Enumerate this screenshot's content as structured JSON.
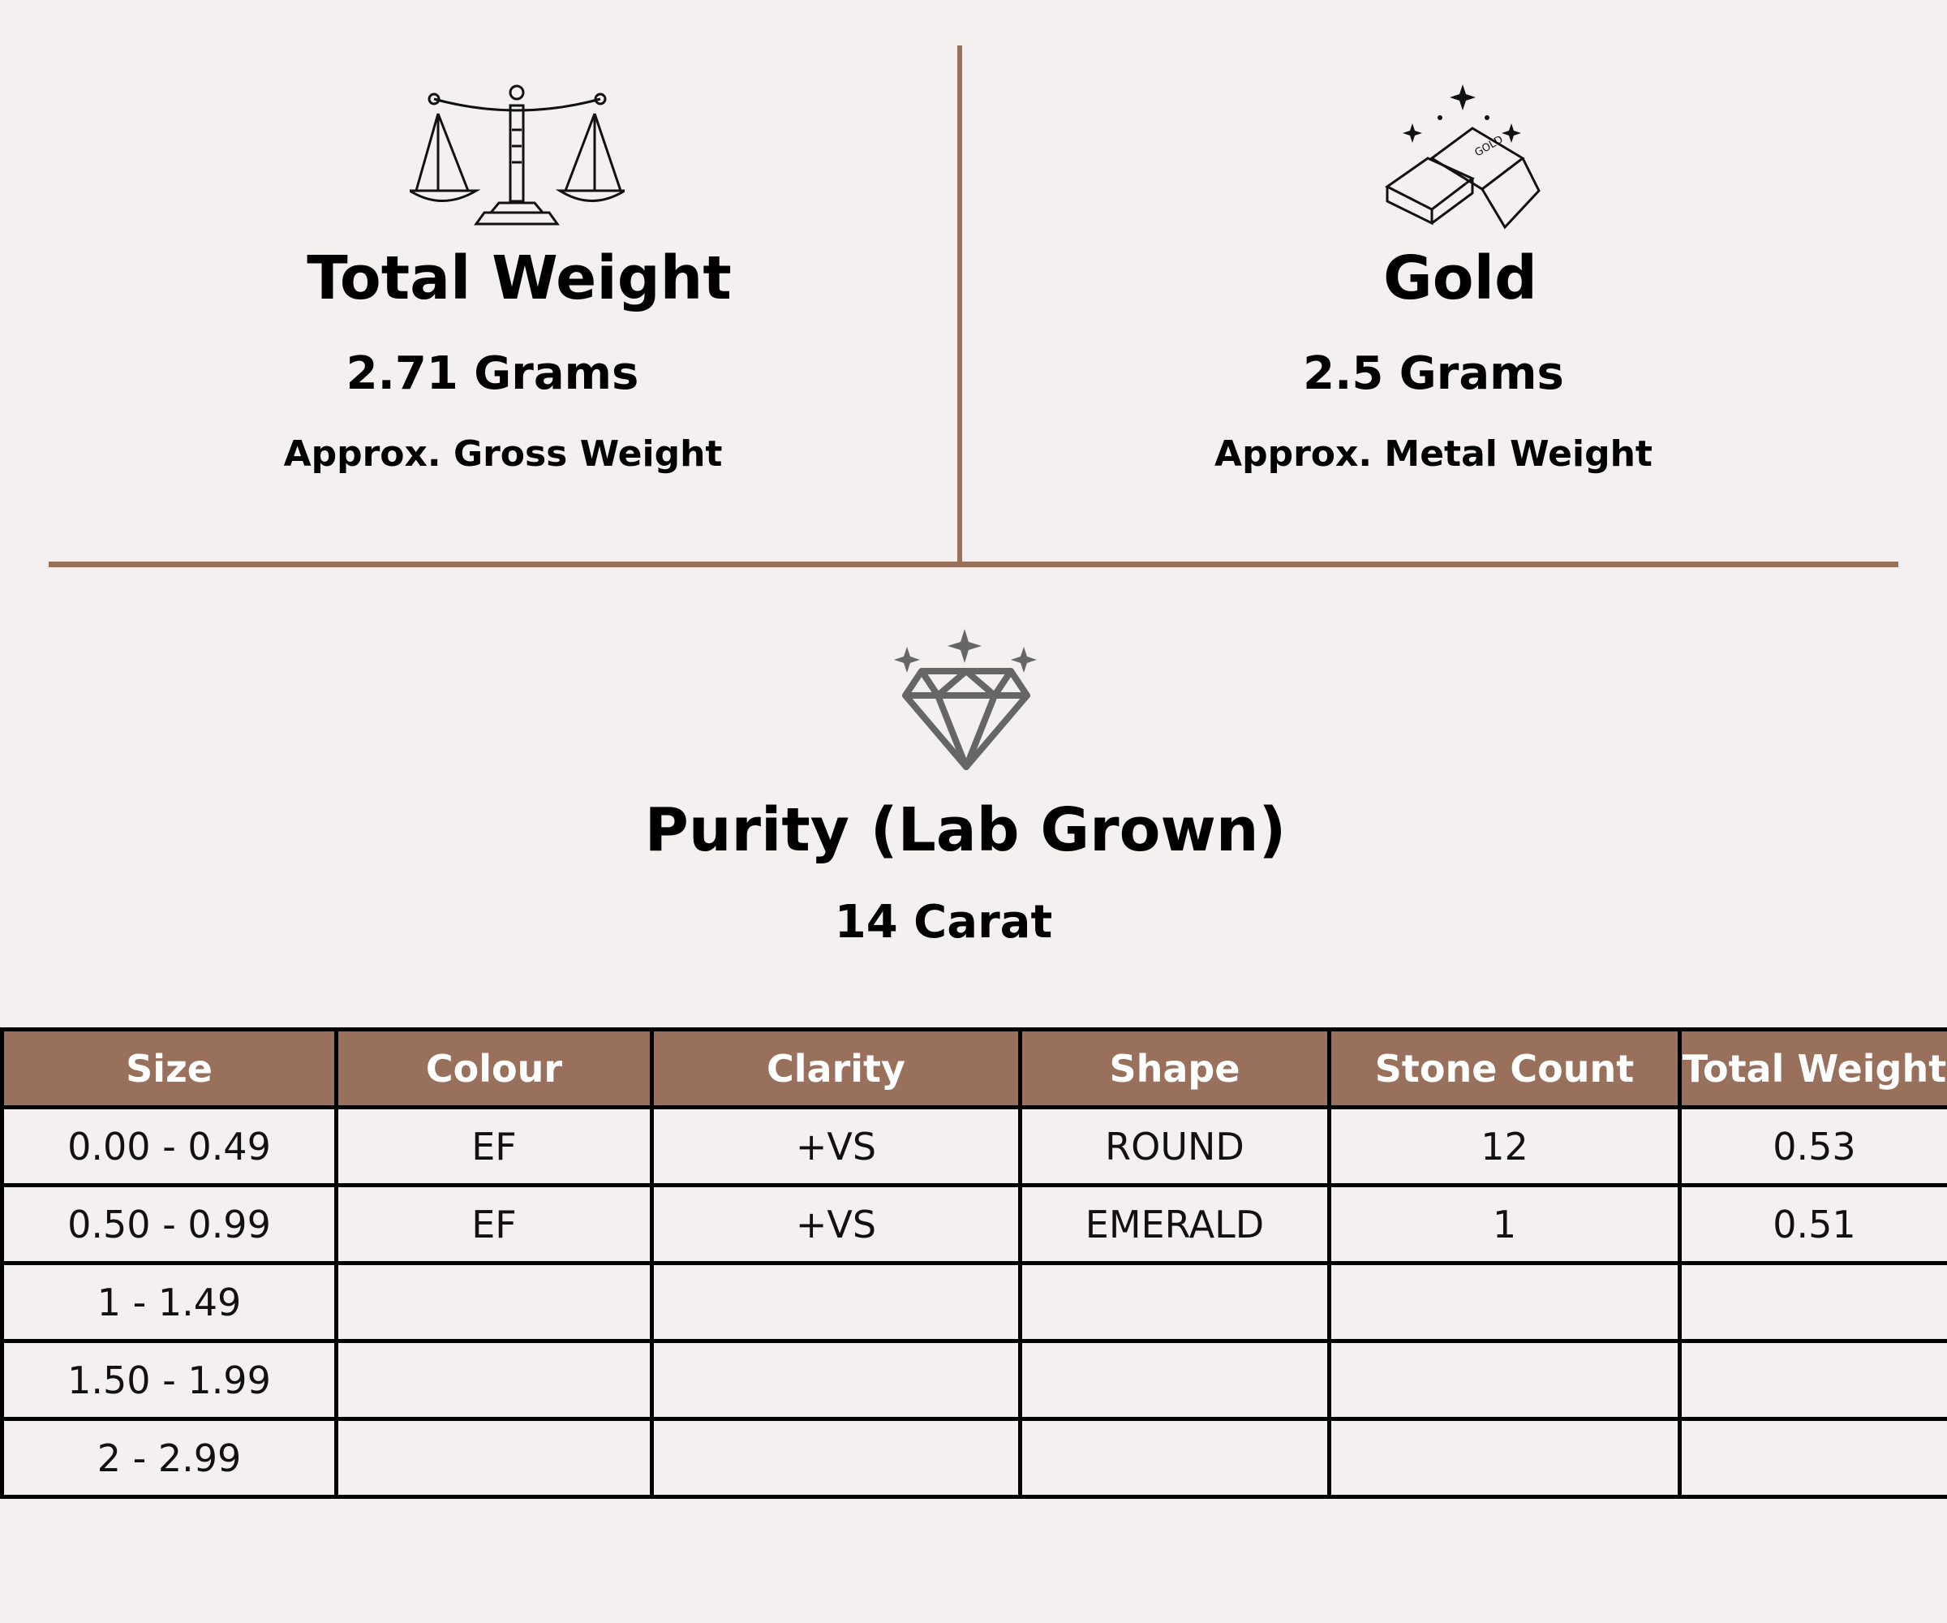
{
  "colors": {
    "background": "#f4f0ef",
    "divider": "#99705c",
    "table_header": "#98705c",
    "header_text": "#ffffff"
  },
  "left_panel": {
    "icon": "scales-icon",
    "title": "Total Weight",
    "value": "2.71 Grams",
    "caption": "Approx. Gross Weight"
  },
  "right_panel": {
    "icon": "gold-bars-icon",
    "icon_label": "GOLD",
    "title": "Gold",
    "value": "2.5 Grams",
    "caption": "Approx. Metal Weight"
  },
  "center_panel": {
    "icon": "diamond-icon",
    "title": "Purity (Lab Grown)",
    "value": "14 Carat"
  },
  "table": {
    "headers": [
      "Size",
      "Colour",
      "Clarity",
      "Shape",
      "Stone Count",
      "Total Weight"
    ],
    "rows": [
      [
        "0.00 - 0.49",
        "EF",
        "+VS",
        "ROUND",
        "12",
        "0.53"
      ],
      [
        "0.50 - 0.99",
        "EF",
        "+VS",
        "EMERALD",
        "1",
        "0.51"
      ],
      [
        "1 - 1.49",
        "",
        "",
        "",
        "",
        ""
      ],
      [
        "1.50 - 1.99",
        "",
        "",
        "",
        "",
        ""
      ],
      [
        "2 - 2.99",
        "",
        "",
        "",
        "",
        ""
      ]
    ]
  }
}
